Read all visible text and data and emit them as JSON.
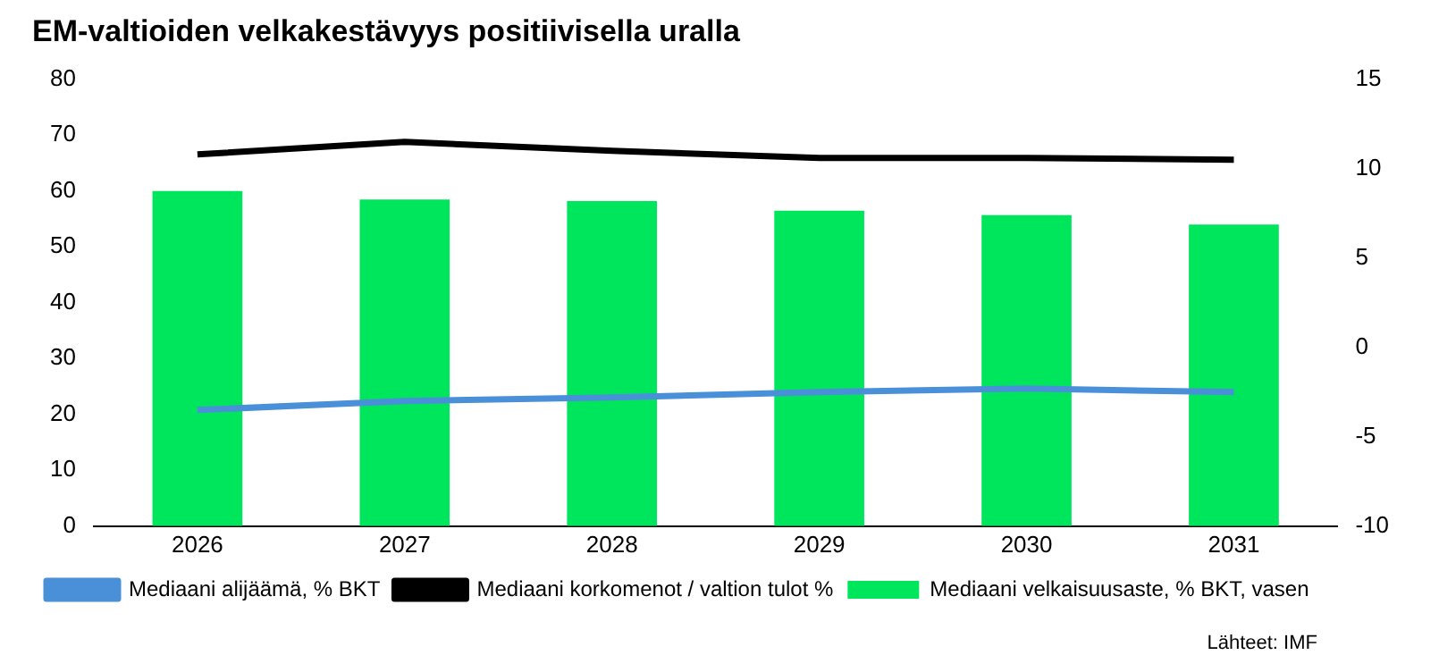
{
  "chart_data": {
    "type": "bar",
    "title": "EM-valtioiden velkakestävyys positiivisella uralla",
    "categories": [
      "2026",
      "2027",
      "2028",
      "2029",
      "2030",
      "2031"
    ],
    "series": [
      {
        "name": "Mediaani velkaisuusaste, % BKT, vasen",
        "color": "#00e65c",
        "values": [
          60,
          58.5,
          58.2,
          56.5,
          55.7,
          54
        ]
      },
      {
        "name": "Mediaani alijäämä, % BKT",
        "type": "line",
        "axis": "y2",
        "color": "#4a90d9",
        "values": [
          -3.5,
          -3.0,
          -2.8,
          -2.5,
          -2.3,
          -2.5
        ]
      },
      {
        "name": "Mediaani korkomenot / valtion tulot %",
        "type": "line",
        "axis": "y2",
        "color": "#000000",
        "values": [
          10.8,
          11.5,
          11.0,
          10.6,
          10.6,
          10.5
        ]
      }
    ],
    "ylim": [
      0,
      80
    ],
    "yticks": [
      0,
      10,
      20,
      30,
      40,
      50,
      60,
      70,
      80
    ],
    "y2lim": [
      -10,
      15
    ],
    "y2ticks": [
      -10,
      -5,
      0,
      5,
      10,
      15
    ],
    "grid": false,
    "legend": "bottom",
    "marker": "none",
    "annotations": [
      "Lähteet: IMF"
    ]
  }
}
